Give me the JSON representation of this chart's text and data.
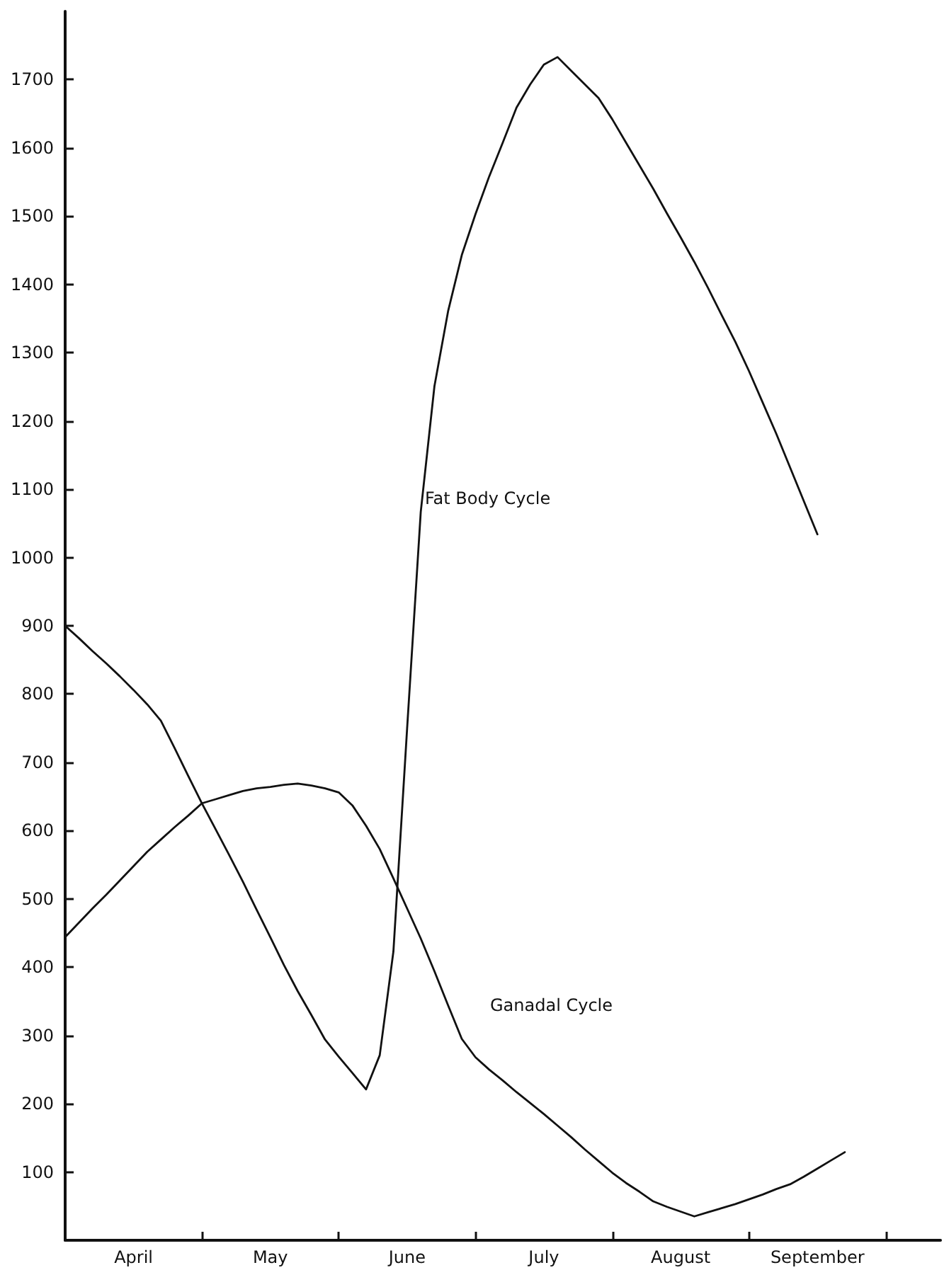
{
  "chart_data": {
    "type": "line",
    "categories": [
      null,
      null,
      null,
      null,
      null,
      "April",
      null,
      null,
      null,
      null,
      null,
      null,
      null,
      null,
      null,
      "May",
      null,
      null,
      null,
      null,
      null,
      null,
      null,
      null,
      null,
      "June",
      null,
      null,
      null,
      null,
      null,
      null,
      null,
      null,
      null,
      "July",
      null,
      null,
      null,
      null,
      null,
      null,
      null,
      null,
      null,
      "August",
      null,
      null,
      null,
      null,
      null,
      null,
      null,
      null,
      null,
      "September",
      null,
      null,
      null,
      null,
      null,
      null,
      null,
      null,
      null
    ],
    "ylim": [
      0,
      1800
    ],
    "yticks": [
      100,
      200,
      300,
      400,
      500,
      600,
      700,
      800,
      900,
      1000,
      1100,
      1200,
      1300,
      1400,
      1500,
      1600,
      1700
    ],
    "marker": "none",
    "line_style": "solid",
    "series": [
      {
        "color": "#111111",
        "values": [
          900,
          882,
          863,
          845,
          826,
          806,
          785,
          761,
          721,
          680,
          640,
          602,
          564,
          525,
          484,
          444,
          403,
          365,
          330,
          294,
          269,
          245,
          221,
          271,
          423,
          749,
          1067,
          1251,
          1361,
          1443,
          1503,
          1558,
          1608,
          1659,
          1693,
          1722,
          1733,
          1713,
          1693,
          1673,
          1642,
          1608,
          1574,
          1540,
          1504,
          1469,
          1433,
          1395,
          1355,
          1316,
          1273,
          1227,
          1181,
          1132,
          1083,
          1034,
          null,
          null,
          null,
          null,
          null,
          null,
          null,
          null,
          null
        ]
      },
      {
        "color": "#111111",
        "values": [
          444,
          465,
          486,
          506,
          527,
          548,
          569,
          587,
          605,
          622,
          640,
          646,
          652,
          658,
          662,
          664,
          667,
          669,
          666,
          662,
          656,
          637,
          607,
          573,
          530,
          486,
          442,
          394,
          344,
          295,
          268,
          250,
          234,
          217,
          201,
          185,
          168,
          151,
          133,
          116,
          99,
          84,
          71,
          57,
          49,
          42,
          35,
          41,
          47,
          53,
          60,
          67,
          75,
          82,
          93,
          105,
          117,
          129,
          null,
          null,
          null,
          null,
          null,
          null,
          null
        ]
      }
    ],
    "annotations": [
      "Fat Body Cycle",
      "Ganadal Cycle"
    ]
  }
}
